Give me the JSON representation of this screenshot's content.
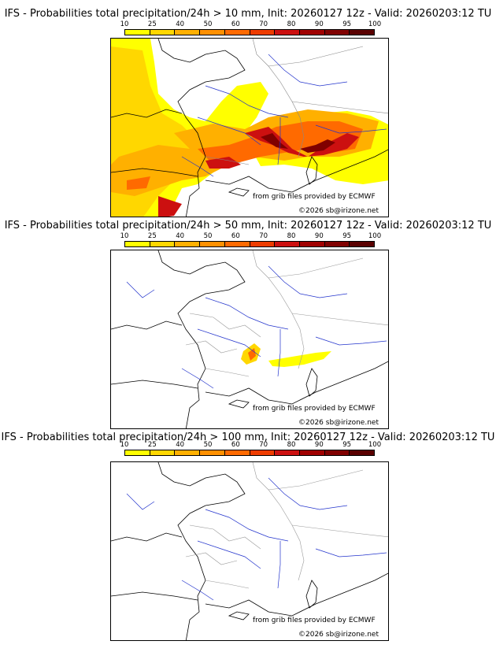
{
  "panels": [
    {
      "title": "IFS - Probabilities total precipitation/24h > 10 mm, Init: 20260127 12z - Valid: 20260203:12 TU",
      "source": "from grib files provided by ECMWF",
      "copyright": "©2026 sb@irizone.net"
    },
    {
      "title": "IFS - Probabilities total precipitation/24h > 50 mm, Init: 20260127 12z - Valid: 20260203:12 TU",
      "source": "from grib files provided by ECMWF",
      "copyright": "©2026 sb@irizone.net"
    },
    {
      "title": "IFS - Probabilities total precipitation/24h > 100 mm, Init: 20260127 12z - Valid: 20260203:12 TU",
      "source": "from grib files provided by ECMWF",
      "copyright": "©2026 sb@irizone.net"
    }
  ],
  "legend": {
    "ticks": [
      "10",
      "25",
      "40",
      "50",
      "60",
      "70",
      "80",
      "90",
      "95",
      "100"
    ],
    "colors": [
      "#ffff00",
      "#ffd700",
      "#ffb000",
      "#ff9000",
      "#ff6a00",
      "#ee3c00",
      "#cc1010",
      "#a00000",
      "#800000",
      "#5a0000"
    ]
  }
}
